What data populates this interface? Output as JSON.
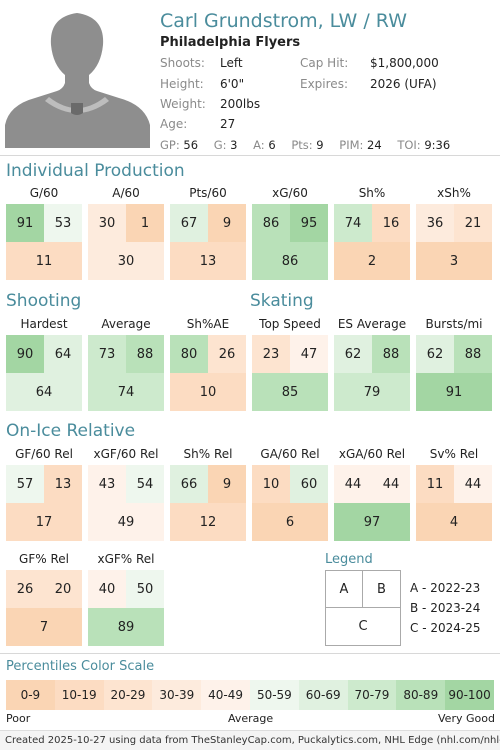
{
  "player": {
    "name": "Carl Grundstrom, LW / RW",
    "team": "Philadelphia Flyers",
    "info": [
      {
        "label": "Shoots:",
        "value": "Left",
        "label2": "Cap Hit:",
        "value2": "$1,800,000"
      },
      {
        "label": "Height:",
        "value": "6'0\"",
        "label2": "Expires:",
        "value2": "2026 (UFA)"
      },
      {
        "label": "Weight:",
        "value": "200lbs",
        "label2": "",
        "value2": ""
      },
      {
        "label": "Age:",
        "value": "27",
        "label2": "",
        "value2": ""
      }
    ],
    "statline": [
      {
        "k": "GP:",
        "v": "56"
      },
      {
        "k": "G:",
        "v": "3"
      },
      {
        "k": "A:",
        "v": "6"
      },
      {
        "k": "Pts:",
        "v": "9"
      },
      {
        "k": "PIM:",
        "v": "24"
      },
      {
        "k": "TOI:",
        "v": "9:36"
      }
    ]
  },
  "sections": {
    "individual": {
      "title": "Individual Production",
      "tiles": [
        {
          "label": "G/60",
          "a": 91,
          "b": 53,
          "c": 11
        },
        {
          "label": "A/60",
          "a": 30,
          "b": 1,
          "c": 30
        },
        {
          "label": "Pts/60",
          "a": 67,
          "b": 9,
          "c": 13
        },
        {
          "label": "xG/60",
          "a": 86,
          "b": 95,
          "c": 86
        },
        {
          "label": "Sh%",
          "a": 74,
          "b": 16,
          "c": 2
        },
        {
          "label": "xSh%",
          "a": 36,
          "b": 21,
          "c": 3
        }
      ]
    },
    "shooting": {
      "title": "Shooting",
      "tiles": [
        {
          "label": "Hardest",
          "a": 90,
          "b": 64,
          "c": 64
        },
        {
          "label": "Average",
          "a": 73,
          "b": 88,
          "c": 74
        },
        {
          "label": "Sh%AE",
          "a": 80,
          "b": 26,
          "c": 10
        }
      ]
    },
    "skating": {
      "title": "Skating",
      "tiles": [
        {
          "label": "Top Speed",
          "a": 23,
          "b": 47,
          "c": 85
        },
        {
          "label": "ES Average",
          "a": 62,
          "b": 88,
          "c": 79
        },
        {
          "label": "Bursts/mi",
          "a": 62,
          "b": 88,
          "c": 91
        }
      ]
    },
    "onice": {
      "title": "On-Ice Relative",
      "tiles": [
        {
          "label": "GF/60 Rel",
          "a": 57,
          "b": 13,
          "c": 17
        },
        {
          "label": "xGF/60 Rel",
          "a": 43,
          "b": 54,
          "c": 49
        },
        {
          "label": "Sh% Rel",
          "a": 66,
          "b": 9,
          "c": 12
        },
        {
          "label": "GA/60 Rel",
          "a": 10,
          "b": 60,
          "c": 6
        },
        {
          "label": "xGA/60 Rel",
          "a": 44,
          "b": 44,
          "c": 97
        },
        {
          "label": "Sv% Rel",
          "a": 11,
          "b": 44,
          "c": 4
        }
      ]
    },
    "share": {
      "tiles": [
        {
          "label": "GF% Rel",
          "a": 26,
          "b": 20,
          "c": 7
        },
        {
          "label": "xGF% Rel",
          "a": 40,
          "b": 50,
          "c": 89
        }
      ]
    }
  },
  "legend": {
    "title": "Legend",
    "cells": {
      "a": "A",
      "b": "B",
      "c": "C"
    },
    "entries": [
      "A - 2022-23",
      "B - 2023-24",
      "C - 2024-25"
    ]
  },
  "scale": {
    "title": "Percentiles Color Scale",
    "bins": [
      "0-9",
      "10-19",
      "20-29",
      "30-39",
      "40-49",
      "50-59",
      "60-69",
      "70-79",
      "80-89",
      "90-100"
    ],
    "colors": [
      "#fad5b4",
      "#fcdcc2",
      "#fde4d0",
      "#fdebdd",
      "#fef2ea",
      "#eef7ee",
      "#e0f1e0",
      "#cdeacd",
      "#b9e1b9",
      "#a3d6a3"
    ],
    "caption_left": "Poor",
    "caption_mid": "Average",
    "caption_right": "Very Good"
  },
  "footer": "Created 2025-10-27 using data from TheStanleyCap.com, Puckalytics.com, NHL Edge (nhl.com/nhl-edge)."
}
